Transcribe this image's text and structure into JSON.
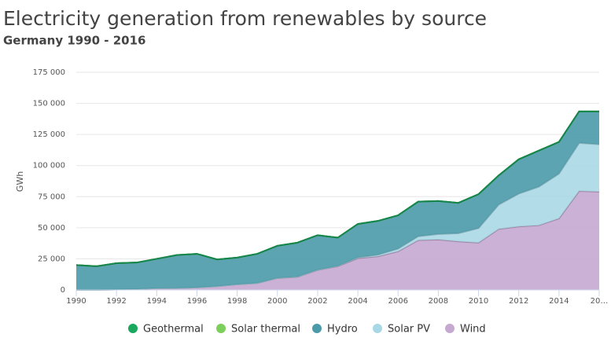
{
  "chart_data": {
    "type": "stacked-area",
    "title": "Electricity generation from renewables by source",
    "subtitle": "Germany 1990 - 2016",
    "y_label": "GWh",
    "x": [
      1990,
      1991,
      1992,
      1993,
      1994,
      1995,
      1996,
      1997,
      1998,
      1999,
      2000,
      2001,
      2002,
      2003,
      2004,
      2005,
      2006,
      2007,
      2008,
      2009,
      2010,
      2011,
      2012,
      2013,
      2014,
      2015,
      2016
    ],
    "series": [
      {
        "name": "Geothermal",
        "color": "#1aa85e",
        "values": [
          0,
          0,
          0,
          0,
          0,
          0,
          0,
          0,
          0,
          0,
          0,
          0,
          0,
          0,
          0,
          0,
          0,
          0,
          0,
          0,
          0,
          0,
          0,
          0,
          0,
          0,
          0
        ]
      },
      {
        "name": "Solar thermal",
        "color": "#7ccf5a",
        "values": [
          0,
          0,
          0,
          0,
          0,
          0,
          0,
          0,
          0,
          0,
          0,
          0,
          0,
          0,
          0,
          0,
          0,
          0,
          0,
          0,
          0,
          0,
          0,
          0,
          0,
          0,
          0
        ]
      },
      {
        "name": "Hydro",
        "color": "#4b9aaa",
        "values": [
          20000,
          19000,
          21200,
          21400,
          23600,
          26500,
          27000,
          21500,
          21500,
          23500,
          25900,
          27300,
          27800,
          22700,
          26900,
          27200,
          26800,
          27900,
          26600,
          24400,
          27300,
          23400,
          27600,
          29000,
          25500,
          25300,
          26400
        ]
      },
      {
        "name": "Solar PV",
        "color": "#a8d8e6",
        "values": [
          0,
          0,
          0,
          0,
          0,
          0,
          0,
          0,
          0,
          0,
          100,
          200,
          200,
          300,
          600,
          1300,
          2200,
          3100,
          4400,
          6600,
          11700,
          19600,
          26400,
          31000,
          36000,
          38700,
          38100
        ]
      },
      {
        "name": "Wind",
        "color": "#c5a9d0",
        "values": [
          0,
          0,
          300,
          600,
          1400,
          1500,
          2000,
          3000,
          4500,
          5500,
          9500,
          10500,
          16000,
          19000,
          25500,
          27000,
          31000,
          40000,
          40500,
          39000,
          38000,
          49000,
          51000,
          52000,
          57500,
          79500,
          79000
        ]
      }
    ],
    "xlim": [
      1990,
      2016
    ],
    "xticks": [
      1990,
      1992,
      1994,
      1996,
      1998,
      2000,
      2002,
      2004,
      2006,
      2008,
      2010,
      2012,
      2014,
      {
        "value": 2016,
        "label": "20…"
      }
    ],
    "ylim": [
      0,
      175000
    ],
    "yticks": [
      0,
      {
        "value": 25000,
        "label": "25 000"
      },
      {
        "value": 50000,
        "label": "50 000"
      },
      {
        "value": 75000,
        "label": "75 000"
      },
      {
        "value": 100000,
        "label": "100 000"
      },
      {
        "value": 125000,
        "label": "125 000"
      },
      {
        "value": 150000,
        "label": "150 000"
      },
      {
        "value": 175000,
        "label": "175 000"
      }
    ],
    "grid": true
  }
}
